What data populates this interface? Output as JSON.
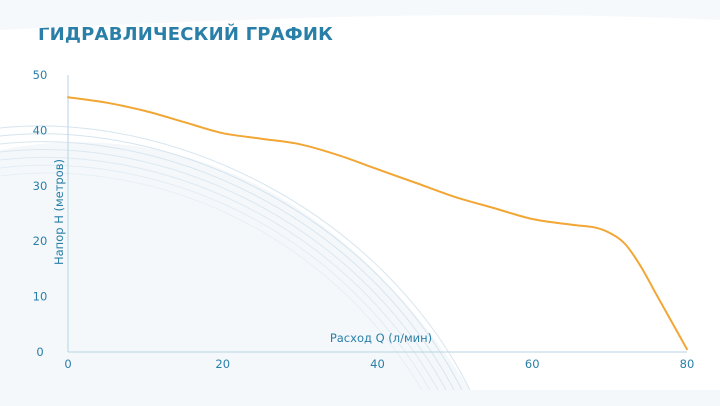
{
  "chart_data": {
    "type": "line",
    "title": "ГИДРАВЛИЧЕСКИЙ ГРАФИК",
    "xlabel": "Расход Q (л/мин)",
    "ylabel": "Напор H (метров)",
    "xlim": [
      0,
      80
    ],
    "ylim": [
      0,
      50
    ],
    "x_ticks": [
      "0",
      "20",
      "40",
      "60",
      "80"
    ],
    "y_ticks": [
      "0",
      "10",
      "20",
      "30",
      "40",
      "50"
    ],
    "grid": false,
    "legend": "none",
    "series": [
      {
        "color": "#f2a634",
        "x": [
          0,
          5,
          10,
          15,
          20,
          25,
          30,
          35,
          40,
          45,
          50,
          55,
          60,
          65,
          68,
          70,
          72,
          74,
          76,
          78,
          80
        ],
        "y": [
          46,
          45,
          43.5,
          41.5,
          39.5,
          38.5,
          37.5,
          35.5,
          33,
          30.5,
          28,
          26,
          24,
          23,
          22.5,
          21.5,
          19.5,
          15.5,
          10.5,
          5.5,
          0.5
        ]
      }
    ]
  }
}
